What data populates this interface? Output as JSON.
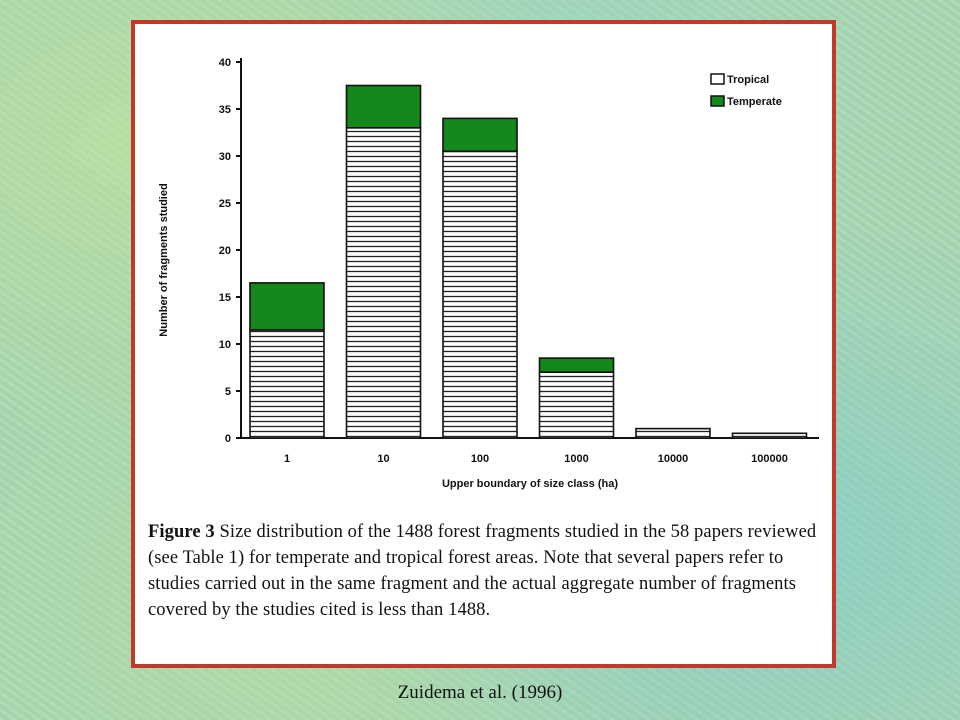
{
  "chart_data": {
    "type": "bar",
    "stacked": true,
    "categories": [
      "1",
      "10",
      "100",
      "1000",
      "10000",
      "100000"
    ],
    "series": [
      {
        "name": "Tropical",
        "values": [
          11.5,
          33,
          30.5,
          7,
          1,
          0.5
        ],
        "color": "#ffffff",
        "pattern": "horizontal-hatch"
      },
      {
        "name": "Temperate",
        "values": [
          5,
          4.5,
          3.5,
          1.5,
          0,
          0
        ],
        "color": "#14881a"
      }
    ],
    "xlabel": "Upper boundary of size class (ha)",
    "ylabel": "Number of fragments studied",
    "ylim": [
      0,
      40
    ],
    "yticks": [
      0,
      5,
      10,
      15,
      20,
      25,
      30,
      35,
      40
    ],
    "grid": false,
    "legend_position": "top-right"
  },
  "caption": {
    "label": "Figure 3",
    "text": " Size distribution of the 1488 forest fragments studied in the 58 papers reviewed (see Table 1) for temperate and tropical forest areas. Note that several papers refer to studies carried out in the same fragment and the actual aggregate number of fragments covered by the studies cited is less than 1488."
  },
  "source": "Zuidema et al. (1996)",
  "frame_color": "#c0392b"
}
